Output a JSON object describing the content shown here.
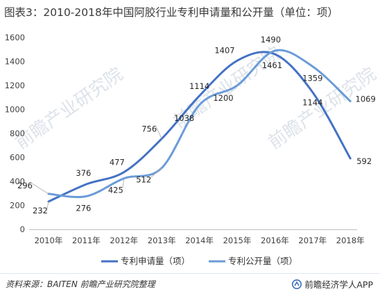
{
  "title": "图表3：2010-2018年中国阿胶行业专利申请量和公开量（单位：项）",
  "source": "资料来源：BAITEN 前瞻产业研究院整理",
  "brand": "前瞻经济学人APP",
  "watermark": "前瞻产业研究院",
  "colors": {
    "series_applications": "#4472c4",
    "series_publications": "#6a9bd8",
    "axis_text": "#404040",
    "label_text": "#262626"
  },
  "chart_data": {
    "type": "line",
    "smooth": true,
    "title": "图表3：2010-2018年中国阿胶行业专利申请量和公开量（单位：项）",
    "xlabel": "",
    "ylabel": "",
    "categories": [
      "2010年",
      "2011年",
      "2012年",
      "2013年",
      "2014年",
      "2015年",
      "2016年",
      "2017年",
      "2018年"
    ],
    "ylim": [
      0,
      1600
    ],
    "yticks": [
      0,
      200,
      400,
      600,
      800,
      1000,
      1200,
      1400,
      1600
    ],
    "grid": false,
    "legend_position": "bottom",
    "series": [
      {
        "name": "专利申请量（项）",
        "values": [
          232,
          376,
          477,
          756,
          1114,
          1407,
          1461,
          1144,
          592
        ]
      },
      {
        "name": "专利公开量（项）",
        "values": [
          296,
          276,
          425,
          512,
          1038,
          1200,
          1490,
          1359,
          1069
        ]
      }
    ]
  }
}
